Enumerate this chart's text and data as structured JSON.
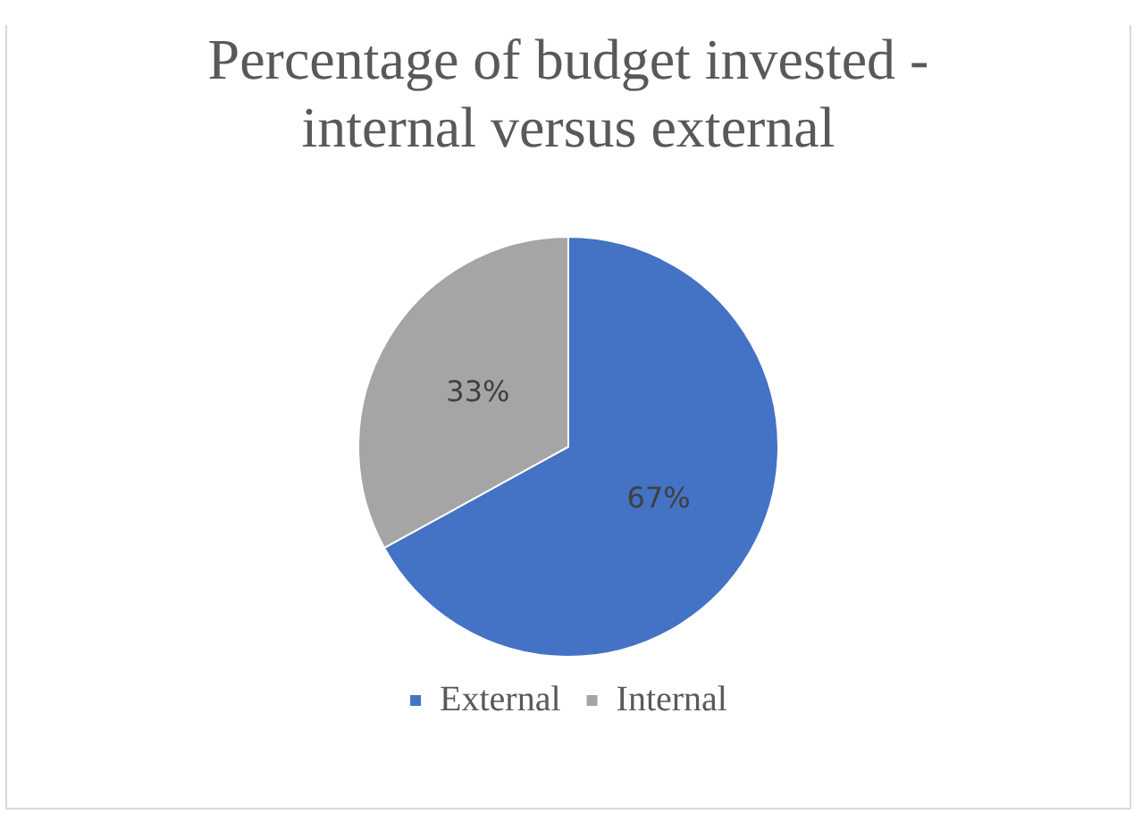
{
  "chart_data": {
    "type": "pie",
    "title": "Percentage of budget invested - internal versus external",
    "categories": [
      "External",
      "Internal"
    ],
    "values": [
      67,
      33
    ],
    "colors": [
      "#4472c4",
      "#a5a5a5"
    ],
    "value_labels": [
      "67%",
      "33%"
    ],
    "legend": "bottom"
  }
}
